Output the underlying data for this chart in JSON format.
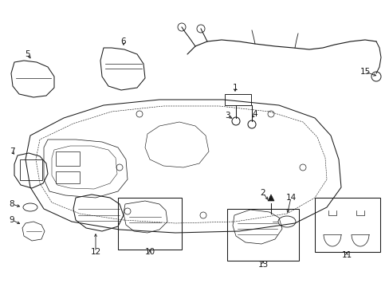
{
  "bg_color": "#ffffff",
  "line_color": "#1a1a1a",
  "figsize": [
    4.89,
    3.6
  ],
  "dpi": 100,
  "label_fontsize": 7.5,
  "lw": 0.75
}
